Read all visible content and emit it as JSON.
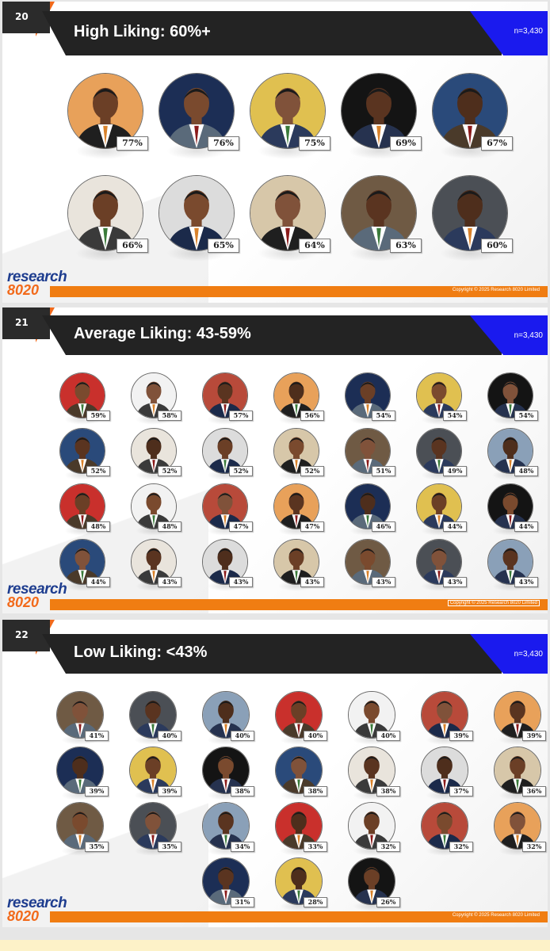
{
  "colors": {
    "title_bar": "#232323",
    "accent_orange": "#f26a1b",
    "accent_blue": "#1a1aee",
    "logo_blue": "#1e3d8f",
    "footer_orange": "#f07d12"
  },
  "brand": {
    "logo_word": "research",
    "logo_number": "8020"
  },
  "copyright": "Copyright © 2025 Research 8020 Limited",
  "slides": [
    {
      "number": "20",
      "title": "High Liking: 60%+",
      "sample": "n=3,430",
      "ratings": [
        "77%",
        "76%",
        "75%",
        "69%",
        "67%",
        "66%",
        "65%",
        "64%",
        "63%",
        "60%"
      ]
    },
    {
      "number": "21",
      "title": "Average Liking: 43-59%",
      "sample": "n=3,430",
      "ratings": [
        "59%",
        "58%",
        "57%",
        "56%",
        "54%",
        "54%",
        "54%",
        "52%",
        "52%",
        "52%",
        "52%",
        "51%",
        "49%",
        "48%",
        "48%",
        "48%",
        "47%",
        "47%",
        "46%",
        "44%",
        "44%",
        "44%",
        "43%",
        "43%",
        "43%",
        "43%",
        "43%",
        "43%"
      ]
    },
    {
      "number": "22",
      "title": "Low Liking: <43%",
      "sample": "n=3,430",
      "ratings": [
        "41%",
        "40%",
        "40%",
        "40%",
        "40%",
        "39%",
        "39%",
        "39%",
        "39%",
        "38%",
        "38%",
        "38%",
        "37%",
        "36%",
        "35%",
        "35%",
        "34%",
        "33%",
        "32%",
        "32%",
        "32%",
        "31%",
        "28%",
        "26%"
      ]
    }
  ]
}
